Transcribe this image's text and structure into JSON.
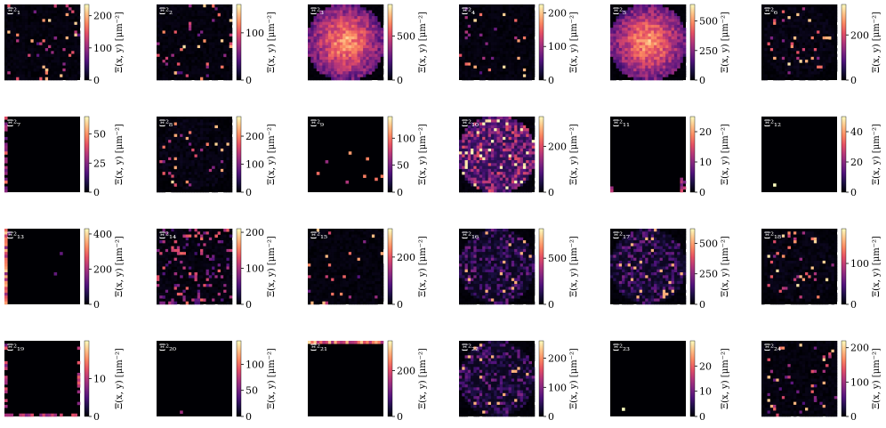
{
  "colors": {
    "cmap": [
      "#000004",
      "#1c1044",
      "#4f127b",
      "#812581",
      "#b5367a",
      "#e55064",
      "#fb8761",
      "#fec287",
      "#fcfdbf"
    ],
    "background": "#ffffff"
  },
  "chart_data": {
    "type": "heatmap",
    "colormap": "magma",
    "layout": {
      "rows": 4,
      "cols": 6
    },
    "colorbar_label": "Ξ(x, y) [μm⁻²]",
    "panels": [
      {
        "label": "Ξ²₁",
        "vmax": 235,
        "ticks": [
          0,
          100,
          200
        ],
        "pattern": "sparse"
      },
      {
        "label": "Ξ²₂",
        "vmax": 160,
        "ticks": [
          0,
          100
        ],
        "pattern": "sparse"
      },
      {
        "label": "Ξ²₃",
        "vmax": 860,
        "ticks": [
          0,
          500
        ],
        "pattern": "blob"
      },
      {
        "label": "Ξ²₄",
        "vmax": 225,
        "ticks": [
          0,
          100,
          200
        ],
        "pattern": "sparse"
      },
      {
        "label": "Ξ²₅",
        "vmax": 640,
        "ticks": [
          0,
          250,
          500
        ],
        "pattern": "blob"
      },
      {
        "label": "Ξ²₆",
        "vmax": 335,
        "ticks": [
          0,
          200
        ],
        "pattern": "ring-sparse"
      },
      {
        "label": "Ξ²₇",
        "vmax": 65,
        "ticks": [
          0,
          25,
          50
        ],
        "pattern": "edge-left"
      },
      {
        "label": "Ξ²₈",
        "vmax": 270,
        "ticks": [
          0,
          100,
          200
        ],
        "pattern": "ring-sparse"
      },
      {
        "label": "Ξ²₉",
        "vmax": 140,
        "ticks": [
          0,
          50,
          100
        ],
        "pattern": "dark"
      },
      {
        "label": "Ξ²₁₀",
        "vmax": 330,
        "ticks": [
          0,
          200
        ],
        "pattern": "noisy-disk"
      },
      {
        "label": "Ξ²₁₁",
        "vmax": 25,
        "ticks": [
          0,
          10,
          20
        ],
        "pattern": "edge-corners"
      },
      {
        "label": "Ξ²₁₂",
        "vmax": 50,
        "ticks": [
          0,
          20,
          40
        ],
        "pattern": "dark-dot"
      },
      {
        "label": "Ξ²₁₃",
        "vmax": 430,
        "ticks": [
          0,
          200,
          400
        ],
        "pattern": "edge-left-bright"
      },
      {
        "label": "Ξ²₁₄",
        "vmax": 210,
        "ticks": [
          0,
          100,
          200
        ],
        "pattern": "sparse-dense"
      },
      {
        "label": "Ξ²₁₅",
        "vmax": 320,
        "ticks": [
          0,
          200
        ],
        "pattern": "sparse"
      },
      {
        "label": "Ξ²₁₆",
        "vmax": 820,
        "ticks": [
          0,
          500
        ],
        "pattern": "noisy-disk-dim"
      },
      {
        "label": "Ξ²₁₇",
        "vmax": 620,
        "ticks": [
          0,
          250,
          500
        ],
        "pattern": "noisy-disk-dim"
      },
      {
        "label": "Ξ²₁₈",
        "vmax": 185,
        "ticks": [
          0,
          100
        ],
        "pattern": "ring-sparse"
      },
      {
        "label": "Ξ²₁₉",
        "vmax": 20,
        "ticks": [
          0,
          10
        ],
        "pattern": "edge-frame"
      },
      {
        "label": "Ξ²₂₀",
        "vmax": 145,
        "ticks": [
          0,
          50,
          100
        ],
        "pattern": "dark"
      },
      {
        "label": "Ξ²₂₁",
        "vmax": 330,
        "ticks": [
          0,
          200
        ],
        "pattern": "edge-top"
      },
      {
        "label": "Ξ²₂₂",
        "vmax": 260,
        "ticks": [
          0,
          100,
          200
        ],
        "pattern": "noisy-disk-dim"
      },
      {
        "label": "Ξ²₂₃",
        "vmax": 30,
        "ticks": [
          0,
          10,
          20
        ],
        "pattern": "dark-dot"
      },
      {
        "label": "Ξ²₂₄",
        "vmax": 220,
        "ticks": [
          0,
          100,
          200
        ],
        "pattern": "sparse"
      }
    ]
  }
}
